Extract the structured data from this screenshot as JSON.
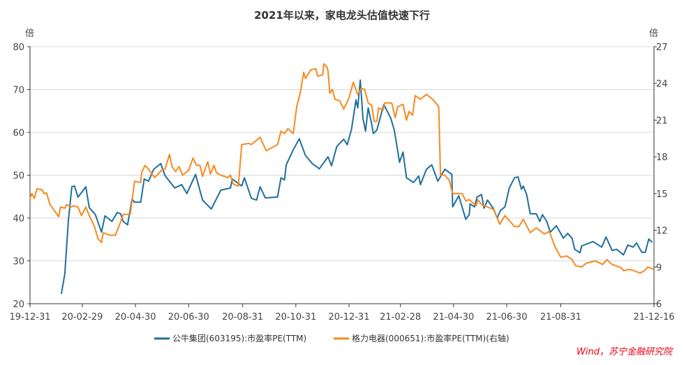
{
  "chart_data": {
    "type": "line",
    "title": "2021年以来，家电龙头估值快速下行",
    "x_unit": "days since 2019-12-31",
    "x_start": "2019-12-31",
    "x_ticks": [
      "19-12-31",
      "20-02-29",
      "20-04-30",
      "20-06-30",
      "20-08-31",
      "20-10-31",
      "20-12-31",
      "21-02-28",
      "21-04-30",
      "21-06-30",
      "21-08-31",
      "21-12-16"
    ],
    "y_left": {
      "label": "倍",
      "range": [
        20,
        80
      ],
      "ticks": [
        20,
        30,
        40,
        50,
        60,
        70,
        80
      ]
    },
    "y_right": {
      "label": "倍",
      "range": [
        6,
        27
      ],
      "ticks": [
        6,
        9,
        12,
        15,
        18,
        21,
        24,
        27
      ]
    },
    "grid": true,
    "legend_position": "bottom",
    "series": [
      {
        "name": "公牛集团(603195):市盈率PE(TTM)",
        "axis": "left",
        "color": "#1f6e9c",
        "x": [
          36,
          40,
          44,
          48,
          51,
          55,
          62,
          64,
          68,
          75,
          82,
          86,
          94,
          100,
          104,
          107,
          112,
          117,
          120,
          127,
          131,
          136,
          142,
          150,
          155,
          166,
          174,
          180,
          190,
          198,
          208,
          219,
          230,
          232,
          243,
          246,
          254,
          260,
          264,
          270,
          284,
          288,
          292,
          294,
          302,
          309,
          316,
          324,
          332,
          342,
          346,
          352,
          360,
          364,
          369,
          374,
          376,
          379,
          382,
          385,
          388,
          392,
          394,
          398,
          406,
          414,
          418,
          422,
          424,
          428,
          432,
          440,
          446,
          448,
          455,
          461,
          468,
          476,
          484,
          485,
          492,
          500,
          504,
          505,
          510,
          513,
          518,
          521,
          525,
          532,
          536,
          540,
          545,
          550,
          556,
          560,
          564,
          566,
          570,
          574,
          581,
          585,
          588,
          593,
          597,
          604,
          612,
          617,
          622,
          625,
          631,
          633,
          646,
          656,
          661,
          668,
          673,
          681,
          686,
          692,
          696,
          702,
          706,
          710,
          714
        ],
        "y": [
          22.3,
          27,
          39.3,
          47.3,
          47.5,
          44.9,
          46.7,
          47.3,
          42.4,
          40.8,
          36.7,
          40.5,
          39.2,
          41.3,
          41,
          39.2,
          38.4,
          44.4,
          43.7,
          43.7,
          49.1,
          48.6,
          51.4,
          52.7,
          49.9,
          47,
          47.8,
          45.7,
          50.2,
          44.2,
          42.1,
          46.5,
          47,
          49.1,
          47.5,
          49.4,
          44.6,
          44.2,
          47.3,
          44.7,
          44.9,
          49.4,
          48.9,
          52.4,
          55.9,
          58.5,
          54.6,
          52.7,
          51.5,
          54.3,
          52.2,
          56.7,
          58.4,
          57.1,
          60.8,
          67.6,
          65.7,
          72.2,
          63.3,
          60.3,
          65.7,
          62,
          59.7,
          60.5,
          66.5,
          63.3,
          60.5,
          55.6,
          53,
          55.4,
          49.4,
          48.3,
          49.8,
          47.8,
          51.4,
          52.4,
          48.6,
          51.4,
          50.2,
          42.6,
          45.2,
          39.7,
          40.8,
          43.3,
          42.6,
          44.9,
          45.5,
          42.3,
          44.2,
          42.1,
          40,
          41.8,
          42.6,
          47,
          49.4,
          49.6,
          46.7,
          47.5,
          45.4,
          41,
          41,
          39.2,
          40.8,
          39.2,
          36.7,
          38.2,
          35.3,
          36.4,
          35.3,
          32.7,
          31.9,
          33.5,
          34.5,
          33.2,
          35.6,
          32.4,
          32.7,
          31.4,
          33.7,
          33.2,
          34.2,
          32,
          32,
          35.1,
          34.3
        ]
      },
      {
        "name": "格力电器(000651):市盈率PE(TTM)(右轴)",
        "axis": "right",
        "color": "#f7891e",
        "x": [
          0,
          2,
          5,
          8,
          14,
          16,
          19,
          23,
          33,
          35,
          40,
          42,
          47,
          50,
          55,
          59,
          64,
          68,
          74,
          78,
          82,
          84,
          91,
          98,
          103,
          107,
          115,
          120,
          127,
          128,
          132,
          136,
          143,
          151,
          155,
          160,
          163,
          167,
          171,
          175,
          182,
          187,
          191,
          195,
          198,
          204,
          207,
          211,
          214,
          219,
          227,
          230,
          233,
          239,
          243,
          251,
          254,
          264,
          271,
          284,
          288,
          292,
          296,
          302,
          306,
          310,
          314,
          316,
          322,
          328,
          330,
          336,
          337,
          341,
          342,
          344,
          347,
          350,
          355,
          360,
          366,
          371,
          376,
          380,
          384,
          388,
          392,
          395,
          398,
          400,
          405,
          407,
          415,
          419,
          422,
          428,
          432,
          435,
          439,
          442,
          448,
          455,
          462,
          468,
          469,
          471,
          476,
          481,
          485,
          496,
          500,
          504,
          512,
          514,
          518,
          532,
          539,
          545,
          556,
          561,
          566,
          574,
          581,
          590,
          596,
          602,
          609,
          616,
          622,
          626,
          633,
          638,
          649,
          657,
          662,
          668,
          678,
          681,
          688,
          693,
          700,
          705,
          709,
          716
        ],
        "y": [
          14.6,
          15,
          14.6,
          15.4,
          15.3,
          15,
          15.05,
          14.1,
          13.1,
          13.9,
          13.8,
          14.1,
          13.9,
          14,
          13.9,
          13.2,
          13.9,
          13.2,
          12.3,
          11.3,
          11,
          11.8,
          11.6,
          11.6,
          12.5,
          13.3,
          13.3,
          16,
          15.9,
          16.7,
          17.3,
          17,
          16.3,
          16.9,
          17,
          18.2,
          17.2,
          16.8,
          17.2,
          16.5,
          16.9,
          17.9,
          17.3,
          17.3,
          16.4,
          17.6,
          16.6,
          17.3,
          16.7,
          16.5,
          16.3,
          16.5,
          15.8,
          15.6,
          19,
          19.1,
          19,
          19.6,
          18.5,
          19,
          20.1,
          19.9,
          20.3,
          19.9,
          22.1,
          23.2,
          24.9,
          24.4,
          25.1,
          25.2,
          24.6,
          24.7,
          25.6,
          25.3,
          25,
          23.2,
          23.5,
          22.7,
          22.6,
          21.9,
          22.8,
          24.1,
          23.1,
          23.6,
          23.5,
          22.4,
          22.2,
          20.9,
          20.9,
          22,
          21.8,
          22.4,
          22.4,
          21.2,
          22.1,
          22.3,
          21,
          21.7,
          21.4,
          23,
          22.7,
          23.1,
          22.7,
          22.2,
          22.1,
          16.5,
          16.5,
          16.1,
          15,
          15,
          14.4,
          14.5,
          14,
          14.5,
          14.1,
          13.7,
          12.5,
          13.2,
          12.3,
          12.3,
          12.9,
          11.8,
          12.2,
          11.7,
          11.9,
          10.7,
          9.8,
          9.9,
          9.6,
          9.1,
          9,
          9.3,
          9.5,
          9.2,
          9.6,
          9.2,
          8.96,
          8.7,
          8.8,
          8.7,
          8.5,
          8.7,
          9,
          8.8
        ]
      }
    ],
    "source": "Wind，苏宁金融研究院"
  }
}
